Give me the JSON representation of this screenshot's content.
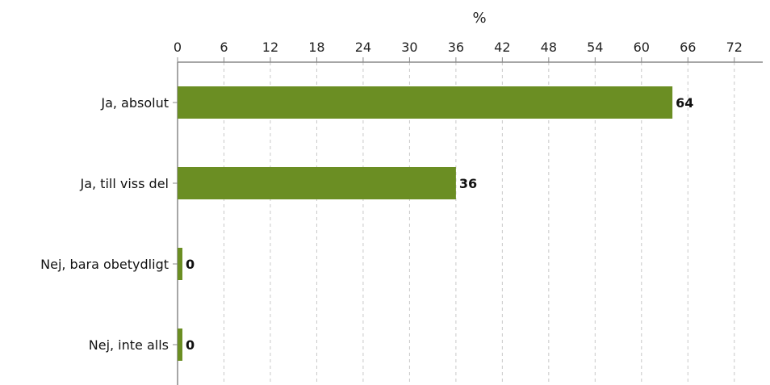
{
  "chart_data": {
    "type": "bar",
    "orientation": "horizontal",
    "xlabel": "%",
    "xlabel_position": "top",
    "xlim": [
      0,
      75
    ],
    "xticks": [
      0,
      6,
      12,
      18,
      24,
      30,
      36,
      42,
      48,
      54,
      60,
      66,
      72
    ],
    "grid": true,
    "categories": [
      "Ja, absolut",
      "Ja, till viss del",
      "Nej, bara obetydligt",
      "Nej, inte alls"
    ],
    "values": [
      64,
      36,
      0,
      0
    ],
    "data_labels": [
      "64",
      "36",
      "0",
      "0"
    ],
    "bar_color": "#6b8e23"
  }
}
